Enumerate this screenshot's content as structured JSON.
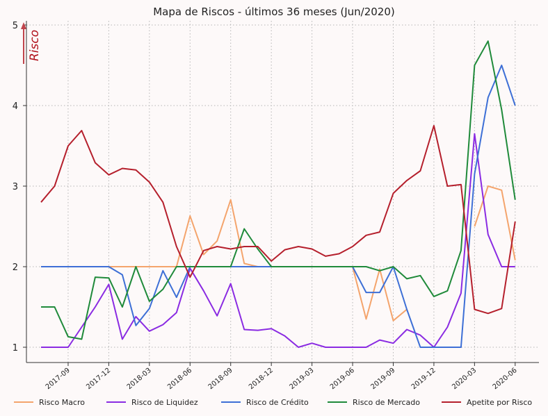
{
  "chart_data": {
    "type": "line",
    "title": "Mapa de Riscos - últimos 36 meses (Jun/2020)",
    "ylabel": "Risco",
    "ylim": [
      0.85,
      5
    ],
    "yticks": [
      1,
      2,
      3,
      4,
      5
    ],
    "x": [
      "2017-07",
      "2017-08",
      "2017-09",
      "2017-10",
      "2017-11",
      "2017-12",
      "2018-01",
      "2018-02",
      "2018-03",
      "2018-04",
      "2018-05",
      "2018-06",
      "2018-07",
      "2018-08",
      "2018-09",
      "2018-10",
      "2018-11",
      "2018-12",
      "2019-01",
      "2019-02",
      "2019-03",
      "2019-04",
      "2019-05",
      "2019-06",
      "2019-07",
      "2019-08",
      "2019-09",
      "2019-10",
      "2019-11",
      "2019-12",
      "2020-01",
      "2020-02",
      "2020-03",
      "2020-04",
      "2020-05",
      "2020-06"
    ],
    "xtick_labels": [
      "2017-09",
      "2017-12",
      "2018-03",
      "2018-06",
      "2018-09",
      "2018-12",
      "2019-03",
      "2019-06",
      "2019-09",
      "2019-12",
      "2020-03",
      "2020-06"
    ],
    "grid": true,
    "legend_position": "bottom",
    "series": [
      {
        "name": "Risco Macro",
        "color": "#f4a46c",
        "values": [
          null,
          null,
          null,
          null,
          null,
          2.0,
          2.0,
          2.0,
          2.0,
          2.0,
          2.0,
          2.63,
          2.15,
          2.32,
          2.83,
          2.04,
          2.0,
          null,
          null,
          null,
          null,
          null,
          null,
          2.0,
          1.35,
          1.97,
          1.33,
          1.47,
          null,
          null,
          null,
          null,
          2.5,
          3.0,
          2.95,
          2.08
        ]
      },
      {
        "name": "Risco de Liquidez",
        "color": "#8a2be2",
        "values": [
          1.0,
          1.0,
          1.0,
          1.25,
          1.5,
          1.78,
          1.1,
          1.38,
          1.2,
          1.28,
          1.43,
          1.98,
          1.7,
          1.39,
          1.79,
          1.22,
          1.21,
          1.23,
          1.14,
          1.0,
          1.05,
          1.0,
          1.0,
          1.0,
          1.0,
          1.09,
          1.05,
          1.22,
          1.15,
          1.0,
          1.25,
          1.67,
          3.65,
          2.4,
          2.0,
          2.0
        ]
      },
      {
        "name": "Risco de Crédito",
        "color": "#3d6fd6",
        "values": [
          2.0,
          2.0,
          2.0,
          2.0,
          2.0,
          2.0,
          1.9,
          1.27,
          1.48,
          1.95,
          1.62,
          2.0,
          2.0,
          2.0,
          2.0,
          2.0,
          2.0,
          2.0,
          2.0,
          2.0,
          2.0,
          2.0,
          2.0,
          2.0,
          1.68,
          1.68,
          2.0,
          1.47,
          1.0,
          1.0,
          1.0,
          1.0,
          3.15,
          4.1,
          4.5,
          4.0
        ]
      },
      {
        "name": "Risco de Mercado",
        "color": "#1f8a3a",
        "values": [
          1.5,
          1.5,
          1.13,
          1.1,
          1.87,
          1.86,
          1.5,
          2.0,
          1.57,
          1.72,
          2.0,
          2.0,
          2.0,
          2.0,
          2.0,
          2.47,
          2.22,
          2.0,
          2.0,
          2.0,
          2.0,
          2.0,
          2.0,
          2.0,
          2.0,
          1.95,
          2.0,
          1.85,
          1.89,
          1.63,
          1.7,
          2.2,
          4.5,
          4.8,
          3.95,
          2.83
        ]
      },
      {
        "name": "Apetite por Risco",
        "color": "#b51f2c",
        "values": [
          2.8,
          3.0,
          3.5,
          3.69,
          3.29,
          3.14,
          3.22,
          3.2,
          3.05,
          2.8,
          2.25,
          1.87,
          2.2,
          2.25,
          2.22,
          2.25,
          2.25,
          2.07,
          2.21,
          2.25,
          2.22,
          2.13,
          2.16,
          2.25,
          2.39,
          2.43,
          2.91,
          3.07,
          3.19,
          3.75,
          3.0,
          3.02,
          1.47,
          1.42,
          1.48,
          2.56
        ]
      }
    ]
  }
}
